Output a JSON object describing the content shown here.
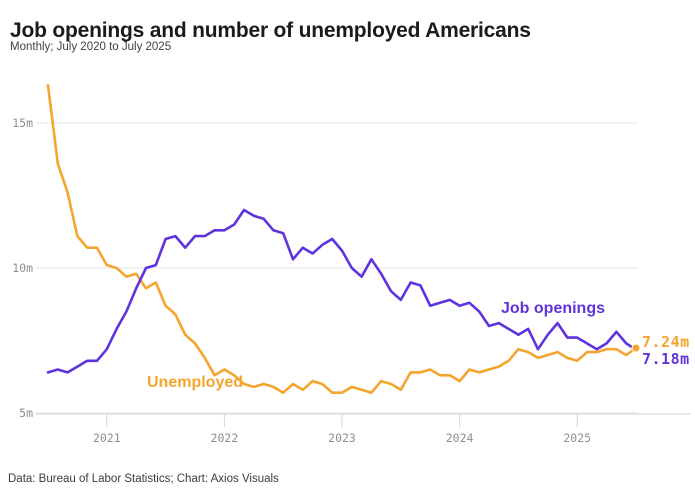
{
  "header": {
    "title": "Job openings and number of unemployed Americans",
    "subtitle": "Monthly; July 2020 to July 2025"
  },
  "footer": {
    "credit": "Data: Bureau of Labor Statistics; Chart: Axios Visuals"
  },
  "colors": {
    "job_openings": "#5f33dd",
    "unemployed": "#f4a52d",
    "gridline": "#e6e6e6",
    "axis": "#d6d6d6",
    "tick_text": "#8e8e8e"
  },
  "chart_data": {
    "type": "line",
    "title": "Job openings and number of unemployed Americans",
    "subtitle": "Monthly; July 2020 to July 2025",
    "x_range": [
      "July 2020",
      "July 2025"
    ],
    "unit": "millions of people",
    "ylim": [
      4.8,
      16.6
    ],
    "grid": true,
    "legend_position": "inline-annotations",
    "y_ticks": [
      {
        "label": "5m",
        "value": 5
      },
      {
        "label": "10m",
        "value": 10
      },
      {
        "label": "15m",
        "value": 15
      }
    ],
    "x_ticks": [
      {
        "label": "2021",
        "month_index": 6
      },
      {
        "label": "2022",
        "month_index": 18
      },
      {
        "label": "2023",
        "month_index": 30
      },
      {
        "label": "2024",
        "month_index": 42
      },
      {
        "label": "2025",
        "month_index": 54
      }
    ],
    "series": [
      {
        "name": "Unemployed",
        "color": "#f4a52d",
        "end_label": "7.24m",
        "end_dot": true,
        "values": [
          16.3,
          13.6,
          12.6,
          11.1,
          10.7,
          10.7,
          10.1,
          10.0,
          9.7,
          9.8,
          9.3,
          9.5,
          8.7,
          8.4,
          7.7,
          7.4,
          6.9,
          6.3,
          6.5,
          6.3,
          6.0,
          5.9,
          6.0,
          5.9,
          5.7,
          6.0,
          5.8,
          6.1,
          6.0,
          5.7,
          5.7,
          5.9,
          5.8,
          5.7,
          6.1,
          6.0,
          5.8,
          6.4,
          6.4,
          6.5,
          6.3,
          6.3,
          6.1,
          6.5,
          6.4,
          6.5,
          6.6,
          6.8,
          7.2,
          7.1,
          6.9,
          7.0,
          7.1,
          6.9,
          6.8,
          7.1,
          7.1,
          7.2,
          7.2,
          7.0,
          7.24
        ]
      },
      {
        "name": "Job openings",
        "color": "#5f33dd",
        "end_label": "7.18m",
        "end_dot": false,
        "values": [
          6.4,
          6.5,
          6.4,
          6.6,
          6.8,
          6.8,
          7.2,
          7.9,
          8.5,
          9.3,
          10.0,
          10.1,
          11.0,
          11.1,
          10.7,
          11.1,
          11.1,
          11.3,
          11.3,
          11.5,
          12.0,
          11.8,
          11.7,
          11.3,
          11.2,
          10.3,
          10.7,
          10.5,
          10.8,
          11.0,
          10.6,
          10.0,
          9.7,
          10.3,
          9.8,
          9.2,
          8.9,
          9.5,
          9.4,
          8.7,
          8.8,
          8.9,
          8.7,
          8.8,
          8.5,
          8.0,
          8.1,
          7.9,
          7.7,
          7.9,
          7.2,
          7.7,
          8.1,
          7.6,
          7.6,
          7.4,
          7.2,
          7.4,
          7.8,
          7.4,
          7.18
        ]
      }
    ]
  }
}
